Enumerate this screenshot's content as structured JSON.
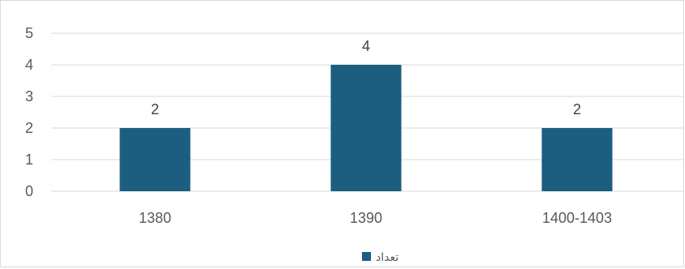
{
  "chart_data": {
    "type": "bar",
    "categories": [
      "1380",
      "1390",
      "1400-1403"
    ],
    "series": [
      {
        "name": "تعداد",
        "values": [
          2,
          4,
          2
        ]
      }
    ],
    "ylim": [
      0,
      5
    ],
    "yticks": [
      "0",
      "1",
      "2",
      "3",
      "4",
      "5"
    ],
    "title": "",
    "xlabel": "",
    "ylabel": "",
    "grid": true,
    "legend": "bottom",
    "bar_color": "#1b5e80",
    "grid_color": "#d9d9d9"
  }
}
